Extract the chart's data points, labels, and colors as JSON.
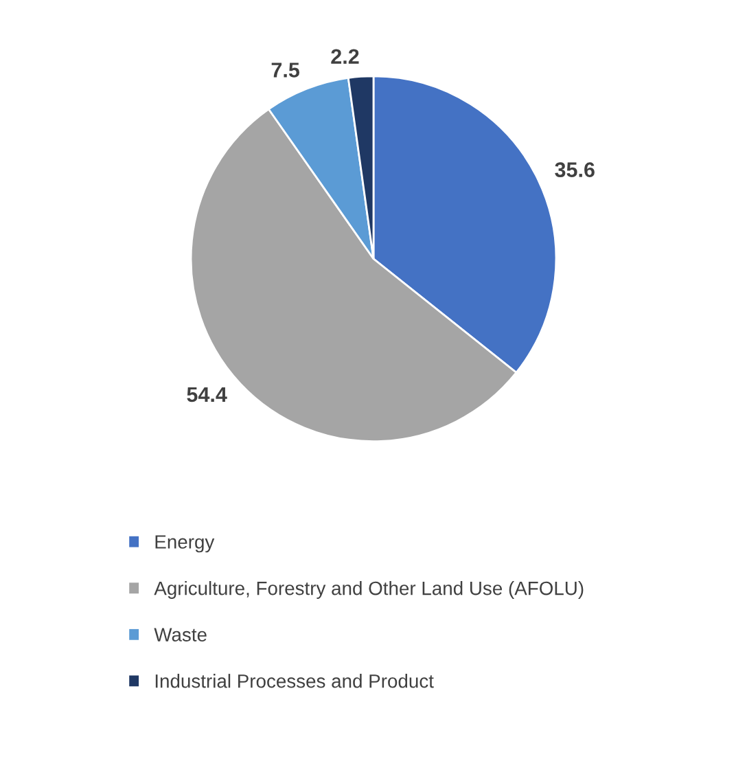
{
  "chart_data": {
    "type": "pie",
    "categories": [
      "Energy",
      "Agriculture, Forestry and Other Land Use (AFOLU)",
      "Waste",
      "Industrial Processes and Product"
    ],
    "values": [
      35.6,
      54.4,
      7.5,
      2.2
    ],
    "colors": [
      "#4472c4",
      "#a5a5a5",
      "#5b9bd5",
      "#1f3864"
    ],
    "data_labels": true,
    "legend": "bottom"
  }
}
